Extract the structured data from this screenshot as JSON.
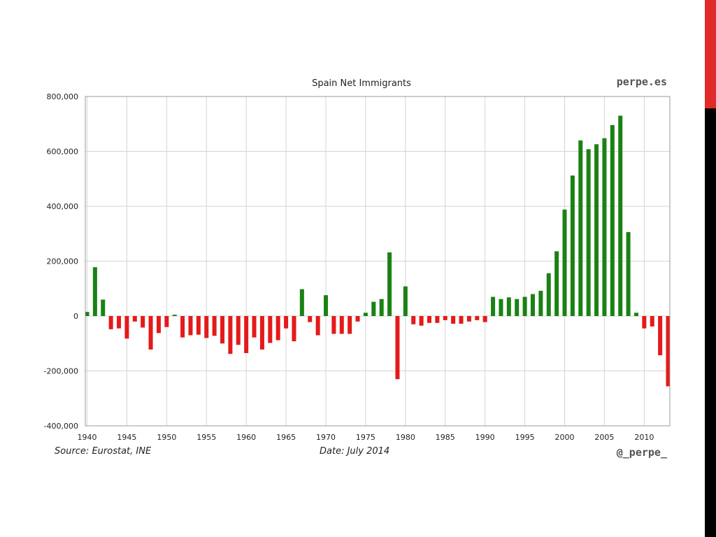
{
  "colors": {
    "positive": "#1a8214",
    "negative": "#e41a1a",
    "grid": "#d4d4d4",
    "edge_red": "#e12b2b",
    "edge_black": "#000000"
  },
  "branding": {
    "top_right": "perpe.es",
    "bottom_right": "@_perpe_"
  },
  "footer": {
    "source": "Source: Eurostat, INE",
    "date": "Date: July 2014"
  },
  "chart_data": {
    "type": "bar",
    "title": "Spain Net Immigrants",
    "xlabel": "",
    "ylabel": "",
    "ylim": [
      -400000,
      800000
    ],
    "xlim": [
      1940,
      2013
    ],
    "y_ticks": [
      "800,000",
      "600,000",
      "400,000",
      "200,000",
      "0",
      "-200,000",
      "-400,000"
    ],
    "y_tick_values": [
      800000,
      600000,
      400000,
      200000,
      0,
      -200000,
      -400000
    ],
    "x_ticks": [
      "1940",
      "1945",
      "1950",
      "1955",
      "1960",
      "1965",
      "1970",
      "1975",
      "1980",
      "1985",
      "1990",
      "1995",
      "2000",
      "2005",
      "2010"
    ],
    "x_tick_values": [
      1940,
      1945,
      1950,
      1955,
      1960,
      1965,
      1970,
      1975,
      1980,
      1985,
      1990,
      1995,
      2000,
      2005,
      2010
    ],
    "grid": true,
    "legend": "none",
    "x": [
      1940,
      1941,
      1942,
      1943,
      1944,
      1945,
      1946,
      1947,
      1948,
      1949,
      1950,
      1951,
      1952,
      1953,
      1954,
      1955,
      1956,
      1957,
      1958,
      1959,
      1960,
      1961,
      1962,
      1963,
      1964,
      1965,
      1966,
      1967,
      1968,
      1969,
      1970,
      1971,
      1972,
      1973,
      1974,
      1975,
      1976,
      1977,
      1978,
      1979,
      1980,
      1981,
      1982,
      1983,
      1984,
      1985,
      1986,
      1987,
      1988,
      1989,
      1990,
      1991,
      1992,
      1993,
      1994,
      1995,
      1996,
      1997,
      1998,
      1999,
      2000,
      2001,
      2002,
      2003,
      2004,
      2005,
      2006,
      2007,
      2008,
      2009,
      2010,
      2011,
      2012,
      2013
    ],
    "values": [
      15000,
      178000,
      60000,
      -48000,
      -45000,
      -82000,
      -20000,
      -42000,
      -122000,
      -62000,
      -40000,
      5000,
      -78000,
      -70000,
      -68000,
      -80000,
      -72000,
      -100000,
      -138000,
      -105000,
      -135000,
      -78000,
      -122000,
      -98000,
      -88000,
      -45000,
      -92000,
      98000,
      -22000,
      -70000,
      76000,
      -65000,
      -65000,
      -65000,
      -20000,
      12000,
      52000,
      62000,
      232000,
      -230000,
      108000,
      -30000,
      -35000,
      -25000,
      -25000,
      -15000,
      -28000,
      -28000,
      -20000,
      -15000,
      -22000,
      70000,
      62000,
      68000,
      62000,
      70000,
      80000,
      92000,
      156000,
      236000,
      388000,
      512000,
      640000,
      608000,
      626000,
      648000,
      696000,
      730000,
      306000,
      12000,
      -45000,
      -38000,
      -143000,
      -256000
    ]
  }
}
